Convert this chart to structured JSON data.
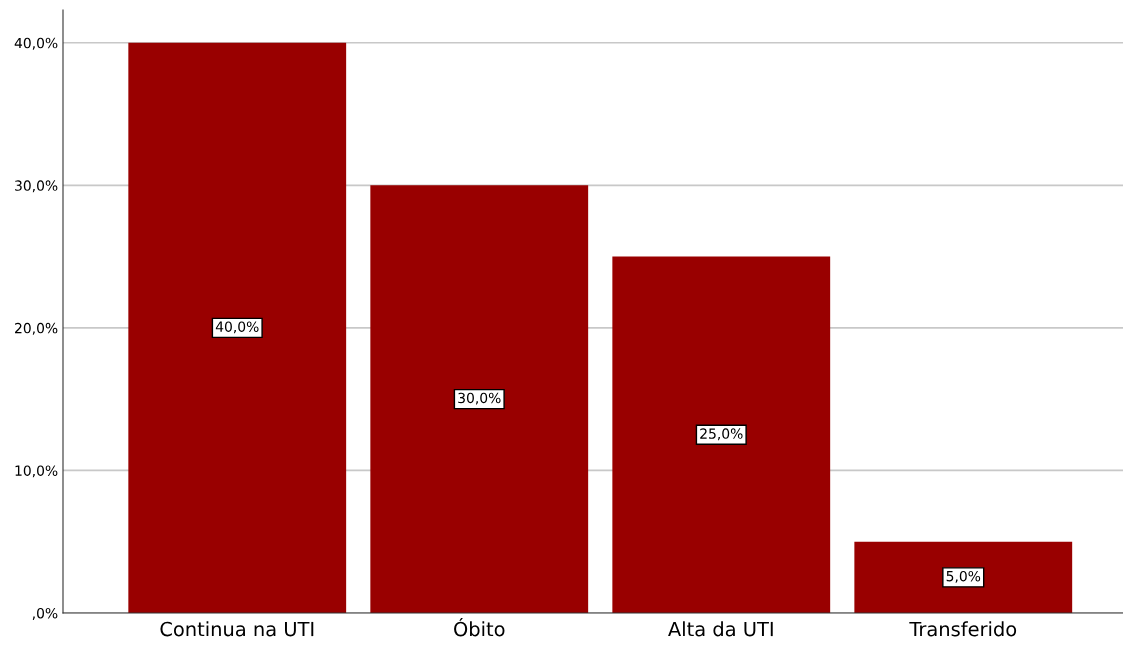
{
  "chart_data": {
    "type": "bar",
    "categories": [
      "Continua na UTI",
      "Óbito",
      "Alta da UTI",
      "Transferido"
    ],
    "values": [
      40,
      30,
      25,
      5
    ],
    "color": "#990000",
    "value_labels": [
      "40,0%",
      "30,0%",
      "25,0%",
      "5,0%"
    ],
    "ylim": [
      0,
      42.3
    ],
    "yticks": [
      {
        "value": 0,
        "label": ",0%"
      },
      {
        "value": 10,
        "label": "10,0%"
      },
      {
        "value": 20,
        "label": "20,0%"
      },
      {
        "value": 30,
        "label": "30,0%"
      },
      {
        "value": 40,
        "label": "40,0%"
      }
    ],
    "grid": "y",
    "legend": false
  }
}
